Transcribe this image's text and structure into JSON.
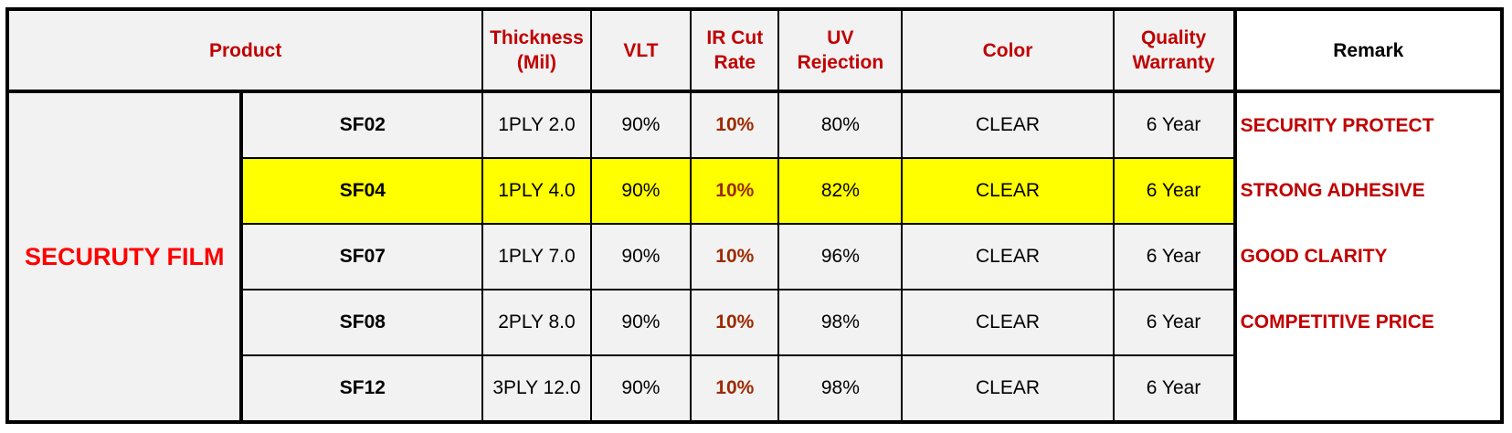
{
  "headers": {
    "product": "Product",
    "thickness": [
      "Thickness",
      "(Mil)"
    ],
    "vlt": "VLT",
    "ir": [
      "IR Cut",
      "Rate"
    ],
    "uv": [
      "UV",
      "Rejection"
    ],
    "color": "Color",
    "warranty": [
      "Quality",
      "Warranty"
    ],
    "remark": "Remark"
  },
  "group_label": "SECURUTY FILM",
  "rows": [
    {
      "code": "SF02",
      "thickness": "1PLY 2.0",
      "vlt": "90%",
      "ir": "10%",
      "uv": "80%",
      "color": "CLEAR",
      "warranty": "6 Year",
      "remark": "SECURITY PROTECT"
    },
    {
      "code": "SF04",
      "thickness": "1PLY 4.0",
      "vlt": "90%",
      "ir": "10%",
      "uv": "82%",
      "color": "CLEAR",
      "warranty": "6 Year",
      "remark": "STRONG ADHESIVE"
    },
    {
      "code": "SF07",
      "thickness": "1PLY 7.0",
      "vlt": "90%",
      "ir": "10%",
      "uv": "96%",
      "color": "CLEAR",
      "warranty": "6 Year",
      "remark": "GOOD CLARITY"
    },
    {
      "code": "SF08",
      "thickness": "2PLY 8.0",
      "vlt": "90%",
      "ir": "10%",
      "uv": "98%",
      "color": "CLEAR",
      "warranty": "6 Year",
      "remark": "COMPETITIVE PRICE"
    },
    {
      "code": "SF12",
      "thickness": "3PLY 12.0",
      "vlt": "90%",
      "ir": "10%",
      "uv": "98%",
      "color": "CLEAR",
      "warranty": "6 Year",
      "remark": ""
    }
  ],
  "highlight_row_index": 1,
  "colors": {
    "header_text": "#c00000",
    "group_text": "#ff0000",
    "ir_text": "#9c2a00",
    "highlight": "#ffff00",
    "cell_bg": "#f2f2f2"
  }
}
